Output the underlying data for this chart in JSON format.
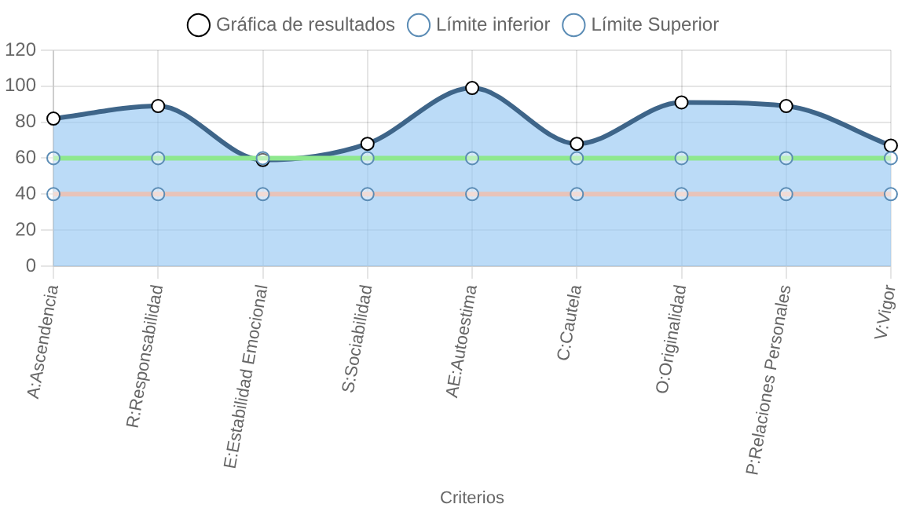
{
  "chart_data": {
    "type": "line",
    "xlabel": "Criterios",
    "categories": [
      "A:Ascendencia",
      "R:Responsabilidad",
      "E:Estabilidad Emocional",
      "S:Sociabilidad",
      "AE:Autoestima",
      "C:Cautela",
      "O:Originalidad",
      "P:Relaciones Personales",
      "V:Vigor"
    ],
    "series": [
      {
        "name": "Gráfica de resultados",
        "type": "area",
        "color": "#3e6589",
        "values": [
          82,
          89,
          59,
          68,
          99,
          68,
          91,
          89,
          67
        ]
      },
      {
        "name": "Límite inferior",
        "type": "line",
        "color": "#e8c3b9",
        "values": [
          40,
          40,
          40,
          40,
          40,
          40,
          40,
          40,
          40
        ]
      },
      {
        "name": "Límite Superior",
        "type": "line",
        "color": "#8ee88e",
        "values": [
          60,
          60,
          60,
          60,
          60,
          60,
          60,
          60,
          60
        ]
      }
    ],
    "ylim": [
      0,
      120
    ],
    "yticks": [
      0,
      20,
      40,
      60,
      80,
      100,
      120
    ],
    "grid": true,
    "legend": "top",
    "marker": "circle"
  }
}
